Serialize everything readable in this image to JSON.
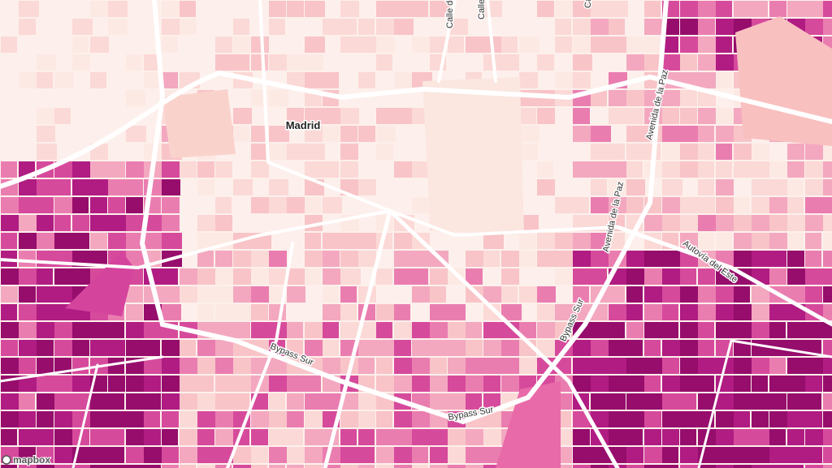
{
  "map": {
    "city_label": "Madrid",
    "street_labels": [
      "Calle de",
      "Calle",
      "Calle d",
      "Avenida de la Paz",
      "Avenida de la Paz",
      "Autovía del Este",
      "Bypass Sur",
      "Bypass Sur",
      "Bypass Sur"
    ],
    "attribution": "mapbox"
  }
}
